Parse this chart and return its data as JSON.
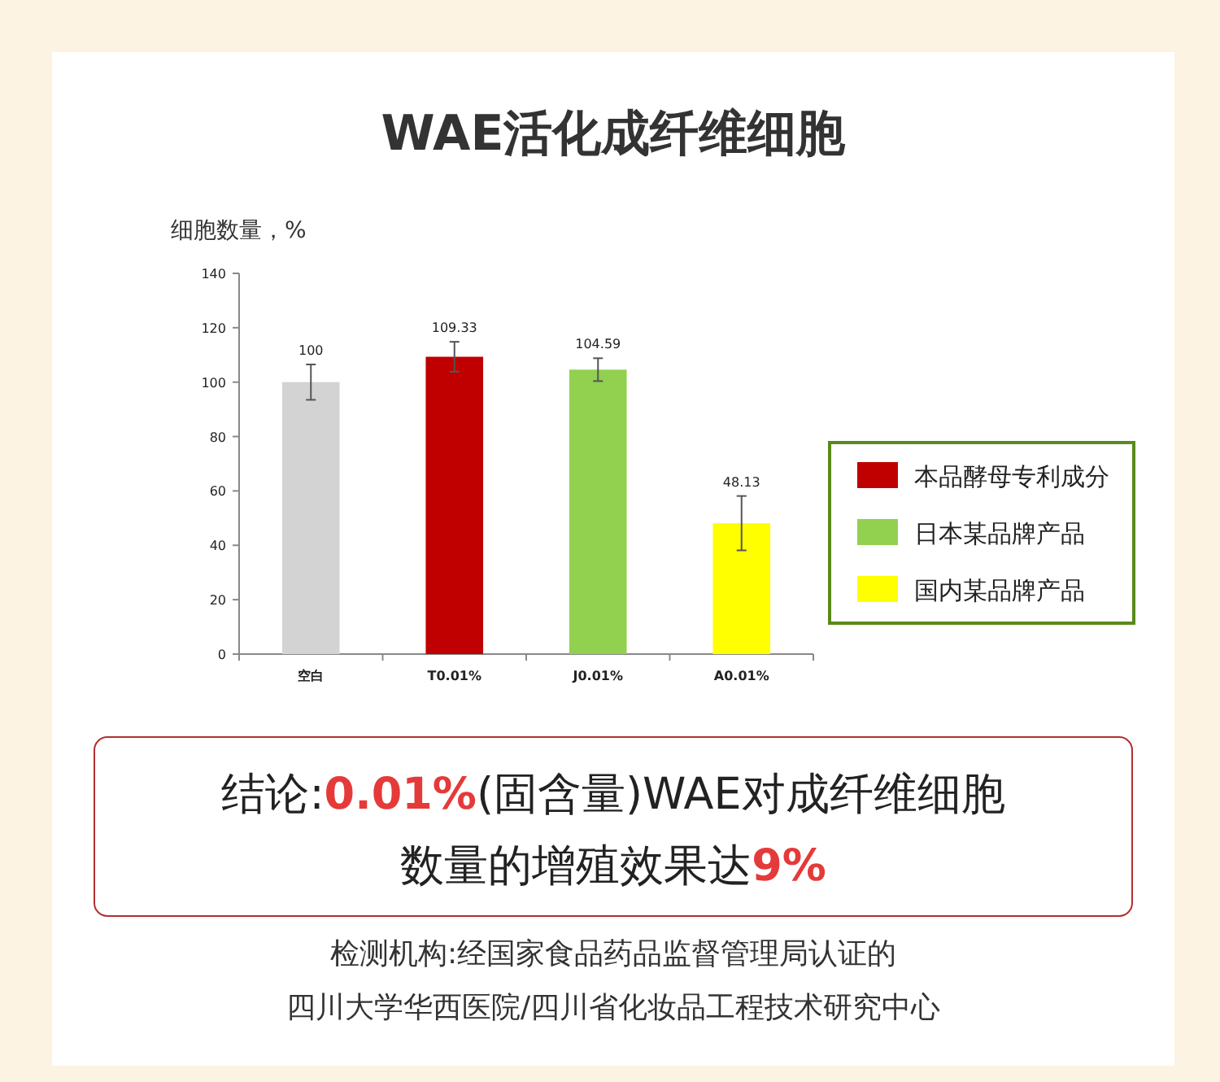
{
  "chart_data": {
    "type": "bar",
    "title": "WAE活化成纤维细胞",
    "ylabel": "细胞数量，%",
    "categories": [
      "空白",
      "T0.01%",
      "J0.01%",
      "A0.01%"
    ],
    "series": [
      {
        "color": "#d3d3d3",
        "values": [
          100,
          null,
          null,
          null
        ],
        "errors": [
          6.5,
          null,
          null,
          null
        ]
      },
      {
        "name": "本品酵母专利成分",
        "color": "#c00000",
        "values": [
          null,
          109.33,
          null,
          null
        ],
        "errors": [
          null,
          5.5,
          null,
          null
        ]
      },
      {
        "name": "日本某品牌产品",
        "color": "#92d050",
        "values": [
          null,
          null,
          104.59,
          null
        ],
        "errors": [
          null,
          null,
          4.2,
          null
        ]
      },
      {
        "name": "国内某品牌产品",
        "color": "#ffff00",
        "values": [
          null,
          null,
          null,
          48.13
        ],
        "errors": [
          null,
          null,
          null,
          10
        ]
      }
    ],
    "ylim": [
      0,
      140
    ],
    "yticks": [
      0,
      20,
      40,
      60,
      80,
      100,
      120,
      140
    ],
    "data_labels": true,
    "grid": false,
    "legend": "right",
    "annotations": [
      "结论:0.01%(固含量)WAE对成纤维细胞",
      "数量的增殖效果达9%",
      "检测机构:经国家食品药品监督管理局认证的",
      "四川大学华西医院/四川省化妆品工程技术研究中心"
    ]
  }
}
